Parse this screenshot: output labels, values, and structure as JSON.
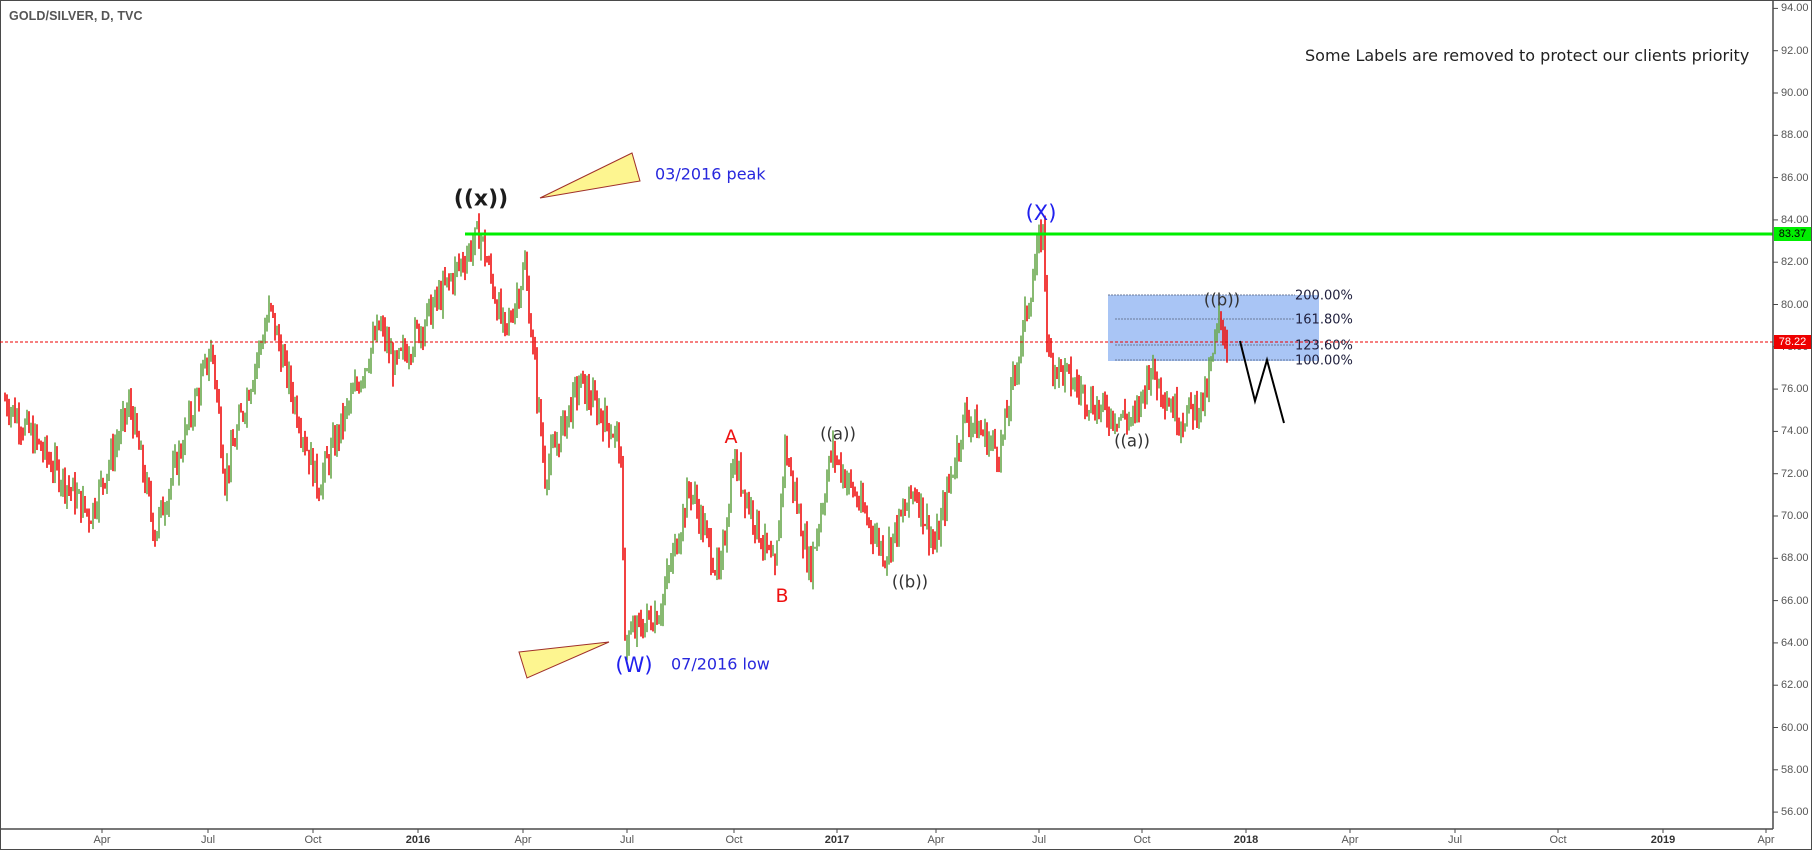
{
  "header": {
    "title": "GOLD/SILVER, D, TVC",
    "note": "Some Labels are removed to protect our clients priority"
  },
  "colors": {
    "up": "#6aa84f",
    "down": "#ee1111",
    "resistance": "#00ee00",
    "last_price": "#ee0000",
    "fib_box": "#a4c2f4",
    "annotation_blue": "#2727dd",
    "wave_red": "#ee1111",
    "triangle_fill": "#fdf590",
    "triangle_stroke": "#a0302a"
  },
  "price_tags": {
    "resistance": "83.37",
    "last": "78.22"
  },
  "annotations": {
    "x_wave": "((x))",
    "peak_note": "03/2016 peak",
    "w_wave": "(W)",
    "low_note": "07/2016 low",
    "big_x_wave": "(X)",
    "A": "A",
    "B": "B",
    "a1": "((a))",
    "b1": "((b))",
    "a2": "((a))",
    "b2": "((b))"
  },
  "fib_levels": [
    "200.00%",
    "161.80%",
    "123.60%",
    "100.00%"
  ],
  "y_axis": [
    "94.00",
    "92.00",
    "90.00",
    "88.00",
    "86.00",
    "84.00",
    "82.00",
    "80.00",
    "78.00",
    "76.00",
    "74.00",
    "72.00",
    "70.00",
    "68.00",
    "66.00",
    "64.00",
    "62.00",
    "60.00",
    "58.00",
    "56.00"
  ],
  "x_axis": [
    {
      "label": "Apr",
      "year": false
    },
    {
      "label": "Jul",
      "year": false
    },
    {
      "label": "Oct",
      "year": false
    },
    {
      "label": "2016",
      "year": true
    },
    {
      "label": "Apr",
      "year": false
    },
    {
      "label": "Jul",
      "year": false
    },
    {
      "label": "Oct",
      "year": false
    },
    {
      "label": "2017",
      "year": true
    },
    {
      "label": "Apr",
      "year": false
    },
    {
      "label": "Jul",
      "year": false
    },
    {
      "label": "Oct",
      "year": false
    },
    {
      "label": "2018",
      "year": true
    },
    {
      "label": "Apr",
      "year": false
    },
    {
      "label": "Jul",
      "year": false
    },
    {
      "label": "Oct",
      "year": false
    },
    {
      "label": "2019",
      "year": true
    },
    {
      "label": "Apr",
      "year": false
    }
  ],
  "chart_data": {
    "type": "line",
    "title": "GOLD/SILVER, D, TVC",
    "xlabel": "",
    "ylabel": "",
    "ylim": [
      55,
      94
    ],
    "grid": false,
    "legend": "none",
    "x_ticks": [
      "Apr",
      "Jul",
      "Oct",
      "2016",
      "Apr",
      "Jul",
      "Oct",
      "2017",
      "Apr",
      "Jul",
      "Oct",
      "2018",
      "Apr",
      "Jul",
      "Oct",
      "2019",
      "Apr"
    ],
    "y_ticks": [
      94,
      92,
      90,
      88,
      86,
      84,
      82,
      80,
      78,
      76,
      74,
      72,
      70,
      68,
      66,
      64,
      62,
      60,
      58,
      56
    ],
    "series": [
      {
        "name": "GOLD/SILVER daily (swing points, approx.)",
        "x": [
          "2015-02",
          "2015-03",
          "2015-04",
          "2015-05",
          "2015-06",
          "2015-07",
          "2015-08",
          "2015-08b",
          "2015-10",
          "2015-12",
          "2016-01",
          "2016-02",
          "2016-03",
          "2016-03b",
          "2016-04",
          "2016-04b",
          "2016-05",
          "2016-06",
          "2016-07",
          "2016-08",
          "2016-09",
          "2016-09b",
          "2016-10",
          "2016-11",
          "2016-11b",
          "2016-12",
          "2017-01",
          "2017-02",
          "2017-03",
          "2017-04",
          "2017-05",
          "2017-06",
          "2017-07",
          "2017-07b",
          "2017-08",
          "2017-09",
          "2017-10",
          "2017-11",
          "2017-12",
          "2017-12b"
        ],
        "values": [
          75.5,
          70.0,
          75.3,
          69.2,
          78.0,
          71.8,
          79.8,
          77.0,
          71.4,
          79.0,
          77.0,
          83.4,
          78.5,
          81.8,
          72.0,
          76.3,
          73.5,
          64.1,
          65.6,
          71.4,
          67.0,
          72.7,
          67.2,
          73.3,
          67.5,
          73.1,
          68.2,
          71.3,
          68.5,
          74.8,
          73.0,
          83.8,
          77.5,
          75.0,
          74.5,
          77.0,
          74.6,
          75.5,
          79.4,
          78.0
        ]
      }
    ],
    "horizontal_lines": [
      {
        "name": "resistance",
        "value": 83.37,
        "color": "#00ee00"
      },
      {
        "name": "last price",
        "value": 78.22,
        "color": "#ee0000",
        "style": "dotted"
      }
    ],
    "fibonacci_extension": [
      {
        "level": "200.00%",
        "price": 80.4
      },
      {
        "level": "161.80%",
        "price": 79.3
      },
      {
        "level": "123.60%",
        "price": 78.1
      },
      {
        "level": "100.00%",
        "price": 77.4
      }
    ],
    "annotations": [
      {
        "text": "((x))",
        "at": "2016-03 peak",
        "price": 83.4
      },
      {
        "text": "03/2016 peak"
      },
      {
        "text": "(W)",
        "at": "2016-07 low",
        "price": 64.1
      },
      {
        "text": "07/2016 low"
      },
      {
        "text": "A",
        "price": 73.0
      },
      {
        "text": "B",
        "price": 67.2
      },
      {
        "text": "((a))",
        "price": 73.1
      },
      {
        "text": "((b))",
        "price": 68.2
      },
      {
        "text": "(X)",
        "at": "2017-07 spike",
        "price": 83.8
      },
      {
        "text": "((a))",
        "price": 74.3
      },
      {
        "text": "((b))",
        "price": 79.4
      },
      {
        "text": "Some Labels are removed to protect our clients priority"
      }
    ],
    "projection_path": [
      78.2,
      75.4,
      77.4,
      74.4
    ]
  }
}
